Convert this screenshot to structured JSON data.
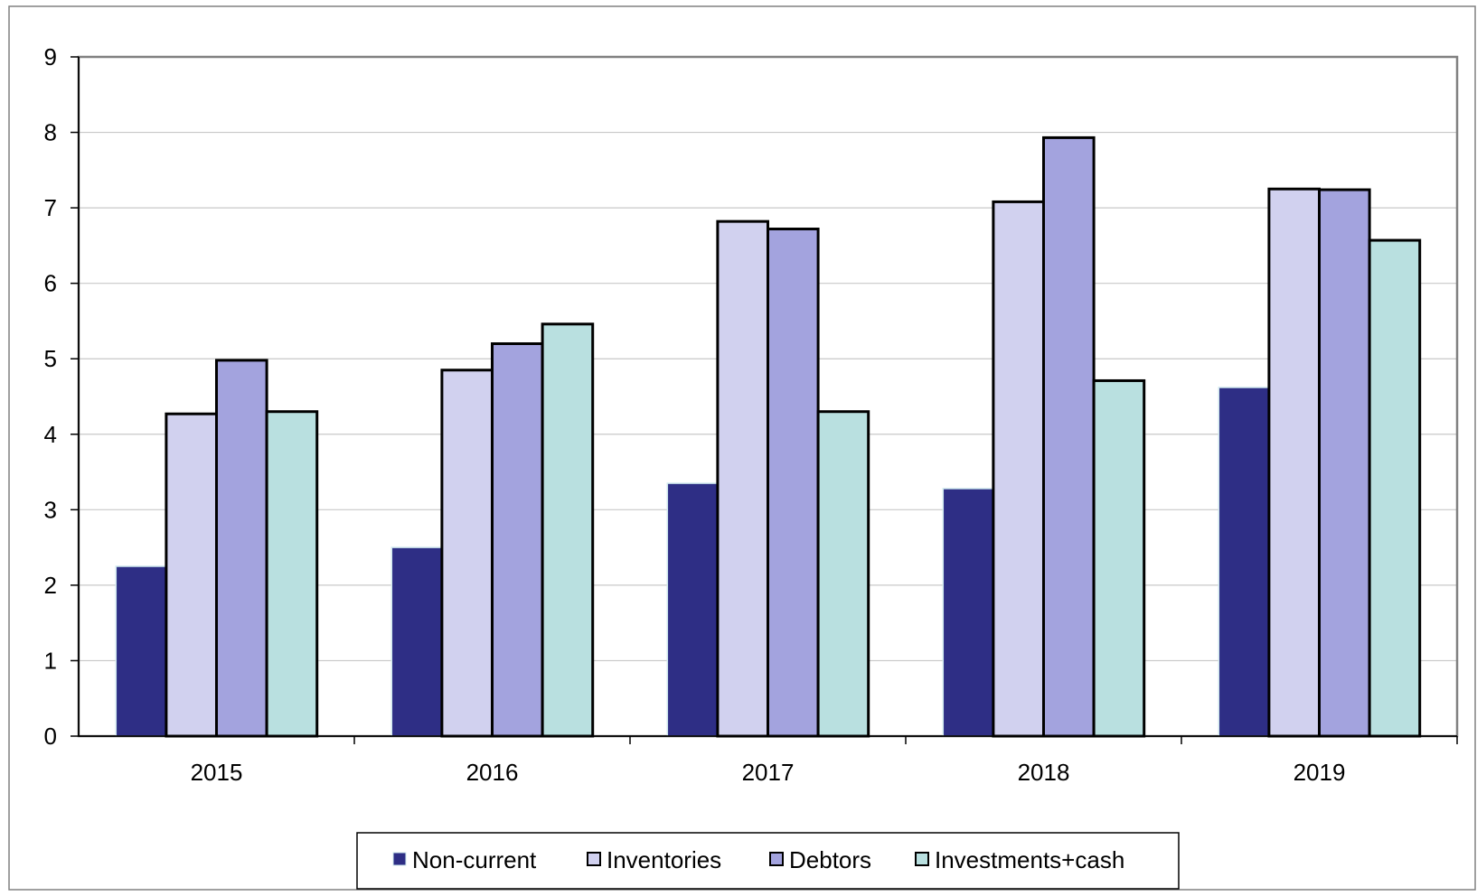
{
  "chart_data": {
    "type": "bar",
    "title": "",
    "xlabel": "",
    "ylabel": "",
    "categories": [
      "2015",
      "2016",
      "2017",
      "2018",
      "2019"
    ],
    "series": [
      {
        "name": "Non-current",
        "values": [
          2.25,
          2.5,
          3.35,
          3.28,
          4.62
        ],
        "color": "#2e2e85"
      },
      {
        "name": "Inventories",
        "values": [
          4.27,
          4.85,
          6.82,
          7.08,
          7.25
        ],
        "color": "#d1d1ef"
      },
      {
        "name": "Debtors",
        "values": [
          4.98,
          5.2,
          6.72,
          7.93,
          7.24
        ],
        "color": "#a3a3de"
      },
      {
        "name": "Investments+cash",
        "values": [
          4.3,
          5.46,
          4.3,
          4.71,
          6.57
        ],
        "color": "#b9e0e0"
      }
    ],
    "ylim": [
      0,
      9
    ],
    "yticks": [
      "0",
      "1",
      "2",
      "3",
      "4",
      "5",
      "6",
      "7",
      "8",
      "9"
    ],
    "grid": true,
    "legend_position": "bottom"
  }
}
